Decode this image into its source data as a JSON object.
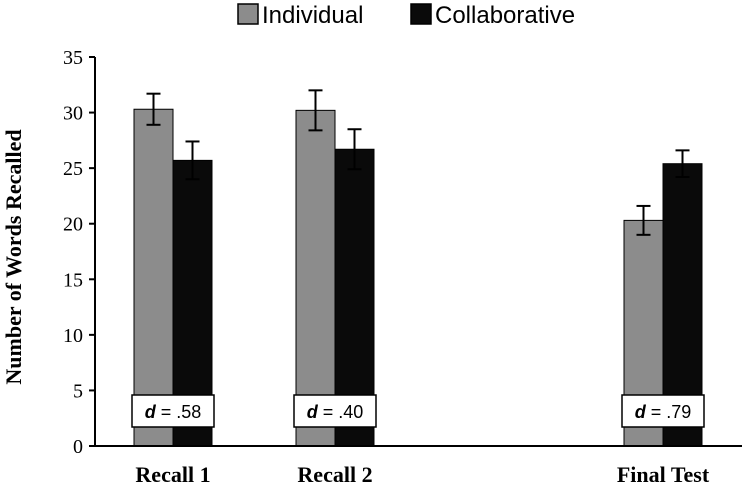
{
  "chart_data": {
    "type": "bar",
    "title": "",
    "xlabel": "",
    "ylabel": "Number of Words Recalled",
    "ylim": [
      0,
      35
    ],
    "yticks": [
      0,
      5,
      10,
      15,
      20,
      25,
      30,
      35
    ],
    "grid": false,
    "legend_position": "top",
    "categories": [
      "Recall 1",
      "Recall 2",
      "Final Test"
    ],
    "series": [
      {
        "name": "Individual",
        "color": "#8c8c8c",
        "values": [
          30.3,
          30.2,
          20.3
        ],
        "errors": [
          1.4,
          1.8,
          1.3
        ]
      },
      {
        "name": "Collaborative",
        "color": "#0a0a0a",
        "values": [
          25.7,
          26.7,
          25.4
        ],
        "errors": [
          1.7,
          1.8,
          1.2
        ]
      }
    ],
    "annotations": [
      {
        "symbol": "d",
        "text": " = .58"
      },
      {
        "symbol": "d",
        "text": " = .40"
      },
      {
        "symbol": "d",
        "text": " = .79"
      }
    ]
  }
}
